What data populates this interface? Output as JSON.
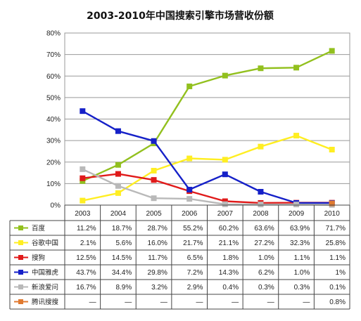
{
  "chart_data": {
    "type": "line",
    "title": "2003-2010年中国搜索引擎市场营收份额",
    "ylim": [
      0,
      80
    ],
    "yticks": [
      "0%",
      "10%",
      "20%",
      "30%",
      "40%",
      "50%",
      "60%",
      "70%",
      "80%"
    ],
    "categories": [
      "2003",
      "2004",
      "2005",
      "2006",
      "2007",
      "2008",
      "2009",
      "2010"
    ],
    "grid": true,
    "legend_position": "table-below",
    "series": [
      {
        "name": "百度",
        "color": "#92c01e",
        "marker": "square",
        "values": [
          11.2,
          18.7,
          28.7,
          55.2,
          60.2,
          63.6,
          63.9,
          71.7
        ],
        "labels": [
          "11.2%",
          "18.7%",
          "28.7%",
          "55.2%",
          "60.2%",
          "63.6%",
          "63.9%",
          "71.7%"
        ]
      },
      {
        "name": "谷歌中国",
        "color": "#ffee22",
        "marker": "square",
        "values": [
          2.1,
          5.6,
          16.0,
          21.7,
          21.1,
          27.2,
          32.3,
          25.8
        ],
        "labels": [
          "2.1%",
          "5.6%",
          "16.0%",
          "21.7%",
          "21.1%",
          "27.2%",
          "32.3%",
          "25.8%"
        ]
      },
      {
        "name": "搜狗",
        "color": "#e01a1a",
        "marker": "square",
        "values": [
          12.5,
          14.5,
          11.7,
          6.5,
          1.8,
          1.0,
          1.1,
          1.1
        ],
        "labels": [
          "12.5%",
          "14.5%",
          "11.7%",
          "6.5%",
          "1.8%",
          "1.0%",
          "1.1%",
          "1.1%"
        ]
      },
      {
        "name": "中国雅虎",
        "color": "#1520c8",
        "marker": "square",
        "values": [
          43.7,
          34.4,
          29.8,
          7.2,
          14.3,
          6.2,
          1.0,
          1.0
        ],
        "labels": [
          "43.7%",
          "34.4%",
          "29.8%",
          "7.2%",
          "14.3%",
          "6.2%",
          "1.0%",
          "1%"
        ]
      },
      {
        "name": "新浪爱问",
        "color": "#b9b9b9",
        "marker": "square",
        "values": [
          16.7,
          8.9,
          3.2,
          2.9,
          0.4,
          0.3,
          0.3,
          0.1
        ],
        "labels": [
          "16.7%",
          "8.9%",
          "3.2%",
          "2.9%",
          "0.4%",
          "0.3%",
          "0.3%",
          "0.1%"
        ]
      },
      {
        "name": "腾讯搜搜",
        "color": "#e07a30",
        "marker": "square",
        "values": [
          null,
          null,
          null,
          null,
          null,
          null,
          null,
          0.8
        ],
        "labels": [
          "—",
          "—",
          "—",
          "—",
          "—",
          "—",
          "—",
          "0.8%"
        ]
      }
    ]
  }
}
